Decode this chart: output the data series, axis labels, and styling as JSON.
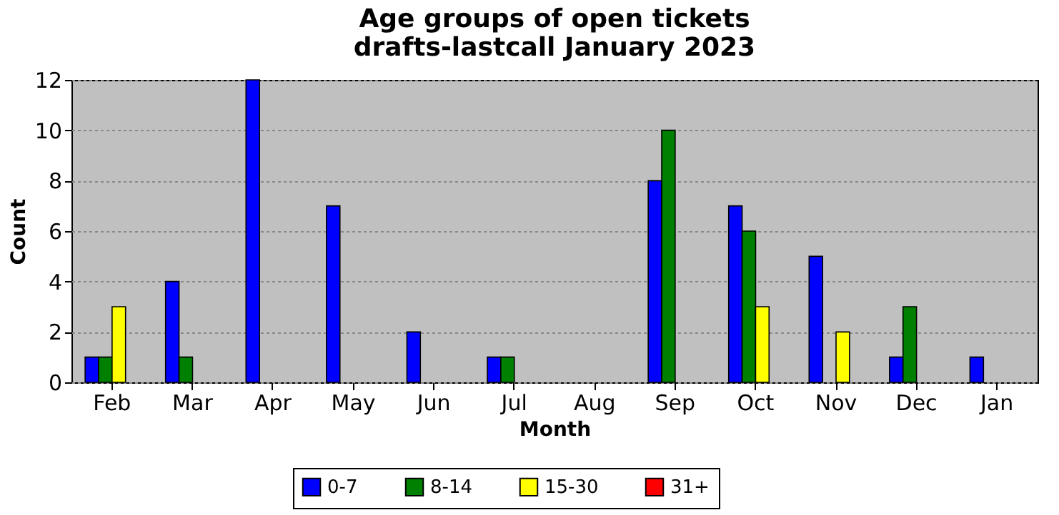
{
  "chart_data": {
    "type": "bar",
    "title": "Age groups of open tickets\ndrafts-lastcall January 2023",
    "xlabel": "Month",
    "ylabel": "Count",
    "categories": [
      "Feb",
      "Mar",
      "Apr",
      "May",
      "Jun",
      "Jul",
      "Aug",
      "Sep",
      "Oct",
      "Nov",
      "Dec",
      "Jan"
    ],
    "series": [
      {
        "name": "0-7",
        "color": "#0000ff",
        "values": [
          1,
          4,
          12,
          7,
          2,
          1,
          0,
          8,
          7,
          5,
          1,
          1
        ]
      },
      {
        "name": "8-14",
        "color": "#008000",
        "values": [
          1,
          1,
          0,
          0,
          0,
          1,
          0,
          10,
          6,
          0,
          3,
          0
        ]
      },
      {
        "name": "15-30",
        "color": "#ffff00",
        "values": [
          3,
          0,
          0,
          0,
          0,
          0,
          0,
          0,
          3,
          2,
          0,
          0
        ]
      },
      {
        "name": "31+",
        "color": "#ff0000",
        "values": [
          0,
          0,
          0,
          0,
          0,
          0,
          0,
          0,
          0,
          0,
          0,
          0
        ]
      }
    ],
    "ylim": [
      0,
      12
    ],
    "yticks": [
      0,
      2,
      4,
      6,
      8,
      10,
      12
    ],
    "grid": "y",
    "legend": "bottom"
  }
}
